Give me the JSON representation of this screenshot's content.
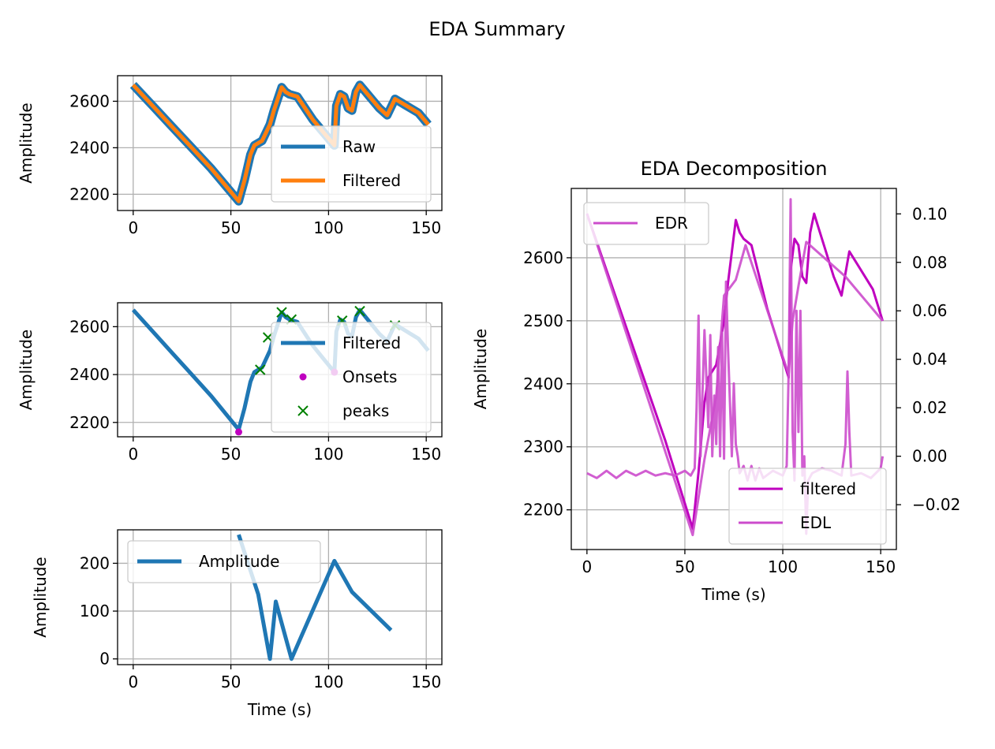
{
  "figure": {
    "suptitle": "EDA Summary"
  },
  "chart_data": [
    {
      "type": "line",
      "title": "",
      "xlabel": "",
      "ylabel": "Amplitude",
      "xlim": [
        -8,
        158
      ],
      "ylim": [
        2130,
        2710
      ],
      "xticks": [
        0,
        50,
        100,
        150
      ],
      "yticks": [
        2200,
        2400,
        2600
      ],
      "grid": true,
      "legend": "right",
      "series": [
        {
          "name": "Raw",
          "color": "#1f77b4",
          "x": [
            0,
            10,
            20,
            30,
            40,
            50,
            54,
            57,
            60,
            62,
            66,
            70,
            72,
            76,
            78,
            80,
            84,
            88,
            92,
            96,
            100,
            103,
            104,
            106,
            108,
            110,
            112,
            114,
            116,
            118,
            122,
            126,
            130,
            134,
            138,
            142,
            146,
            151
          ],
          "y": [
            2670,
            2580,
            2490,
            2400,
            2310,
            2210,
            2170,
            2260,
            2370,
            2410,
            2430,
            2500,
            2560,
            2660,
            2640,
            2630,
            2620,
            2570,
            2520,
            2480,
            2440,
            2410,
            2580,
            2630,
            2620,
            2570,
            2560,
            2640,
            2670,
            2650,
            2610,
            2570,
            2540,
            2610,
            2590,
            2570,
            2550,
            2500
          ]
        },
        {
          "name": "Filtered",
          "color": "#ff7f0e",
          "x": [
            0,
            10,
            20,
            30,
            40,
            50,
            54,
            57,
            60,
            62,
            66,
            70,
            72,
            76,
            78,
            80,
            84,
            88,
            92,
            96,
            100,
            103,
            104,
            106,
            108,
            110,
            112,
            114,
            116,
            118,
            122,
            126,
            130,
            134,
            138,
            142,
            146,
            151
          ],
          "y": [
            2670,
            2580,
            2490,
            2400,
            2310,
            2210,
            2170,
            2260,
            2370,
            2410,
            2430,
            2500,
            2560,
            2660,
            2640,
            2630,
            2620,
            2570,
            2520,
            2480,
            2440,
            2410,
            2580,
            2630,
            2620,
            2570,
            2560,
            2640,
            2670,
            2650,
            2610,
            2570,
            2540,
            2610,
            2590,
            2570,
            2550,
            2500
          ]
        }
      ]
    },
    {
      "type": "line",
      "title": "",
      "xlabel": "",
      "ylabel": "Amplitude",
      "xlim": [
        -8,
        158
      ],
      "ylim": [
        2140,
        2700
      ],
      "xticks": [
        0,
        50,
        100,
        150
      ],
      "yticks": [
        2200,
        2400,
        2600
      ],
      "grid": true,
      "legend": "right",
      "series": [
        {
          "name": "Filtered",
          "color": "#1f77b4",
          "x": [
            0,
            10,
            20,
            30,
            40,
            50,
            54,
            57,
            60,
            62,
            66,
            70,
            72,
            76,
            78,
            80,
            84,
            88,
            92,
            96,
            100,
            103,
            104,
            106,
            108,
            110,
            112,
            114,
            116,
            118,
            122,
            126,
            130,
            134,
            138,
            142,
            146,
            151
          ],
          "y": [
            2670,
            2580,
            2490,
            2400,
            2310,
            2210,
            2170,
            2260,
            2370,
            2410,
            2430,
            2500,
            2560,
            2660,
            2640,
            2630,
            2620,
            2570,
            2520,
            2480,
            2440,
            2410,
            2580,
            2630,
            2620,
            2570,
            2560,
            2640,
            2670,
            2650,
            2610,
            2570,
            2540,
            2610,
            2590,
            2570,
            2550,
            2500
          ]
        },
        {
          "name": "Onsets",
          "color": "#bf00bf",
          "marker": "dot",
          "x": [
            54,
            103
          ],
          "y": [
            2160,
            2410
          ]
        },
        {
          "name": "peaks",
          "color": "#008000",
          "marker": "x",
          "x": [
            65,
            69,
            76,
            81,
            107,
            116,
            134
          ],
          "y": [
            2420,
            2555,
            2660,
            2630,
            2625,
            2665,
            2605
          ]
        }
      ]
    },
    {
      "type": "line",
      "title": "",
      "xlabel": "Time (s)",
      "ylabel": "Amplitude",
      "xlim": [
        -8,
        158
      ],
      "ylim": [
        -12,
        270
      ],
      "xticks": [
        0,
        50,
        100,
        150
      ],
      "yticks": [
        0,
        100,
        200
      ],
      "grid": true,
      "legend": "upper left",
      "series": [
        {
          "name": "Amplitude",
          "color": "#1f77b4",
          "x": [
            54,
            64,
            70,
            73,
            81,
            103,
            112,
            132
          ],
          "y": [
            260,
            135,
            0,
            120,
            0,
            205,
            140,
            60
          ]
        }
      ]
    },
    {
      "type": "line",
      "title": "EDA Decomposition",
      "xlabel": "Time (s)",
      "ylabel": "Amplitude",
      "xlim": [
        -8,
        158
      ],
      "ylim": [
        2137,
        2710
      ],
      "y2lim": [
        -0.0385,
        0.1105
      ],
      "xticks": [
        0,
        50,
        100,
        150
      ],
      "yticks": [
        2200,
        2300,
        2400,
        2500,
        2600
      ],
      "y2ticks": [
        -0.02,
        0.0,
        0.02,
        0.04,
        0.06,
        0.08,
        0.1
      ],
      "grid": true,
      "legend_right_axis": "upper left",
      "legend_left_axis": "lower right",
      "series": [
        {
          "name": "filtered",
          "color": "#bf00bf",
          "axis": "left",
          "x": [
            0,
            10,
            20,
            30,
            40,
            50,
            54,
            57,
            60,
            62,
            66,
            70,
            72,
            76,
            78,
            80,
            84,
            88,
            92,
            96,
            100,
            103,
            104,
            106,
            108,
            110,
            112,
            114,
            116,
            118,
            122,
            126,
            130,
            134,
            138,
            142,
            146,
            151
          ],
          "y": [
            2670,
            2580,
            2490,
            2400,
            2310,
            2210,
            2170,
            2260,
            2370,
            2410,
            2430,
            2500,
            2560,
            2660,
            2640,
            2630,
            2620,
            2570,
            2520,
            2480,
            2440,
            2410,
            2580,
            2630,
            2620,
            2570,
            2560,
            2640,
            2670,
            2650,
            2610,
            2570,
            2540,
            2610,
            2590,
            2570,
            2550,
            2500
          ]
        },
        {
          "name": "EDL",
          "color": "#cc4ccc",
          "axis": "left",
          "x": [
            0,
            54,
            60,
            66,
            70,
            76,
            81,
            103,
            105,
            108,
            112,
            132,
            151
          ],
          "y": [
            2670,
            2160,
            2280,
            2380,
            2540,
            2565,
            2620,
            2415,
            2500,
            2555,
            2625,
            2570,
            2500
          ]
        },
        {
          "name": "EDR",
          "color": "#cc4ccc",
          "axis": "right",
          "x": [
            0,
            5,
            10,
            15,
            20,
            25,
            30,
            35,
            40,
            45,
            50,
            53,
            55,
            56,
            57,
            58,
            60,
            62,
            63,
            64,
            65,
            66,
            67,
            68,
            69,
            70,
            71,
            72,
            74,
            75,
            76,
            77,
            78,
            80,
            82,
            84,
            86,
            88,
            90,
            95,
            100,
            102,
            103,
            104,
            105,
            106,
            107,
            108,
            109,
            110,
            111,
            112,
            113,
            115,
            120,
            125,
            130,
            132,
            133,
            134,
            135,
            140,
            145,
            150,
            151
          ],
          "y": [
            -0.007,
            -0.009,
            -0.006,
            -0.009,
            -0.006,
            -0.008,
            -0.006,
            -0.008,
            -0.007,
            -0.008,
            -0.006,
            -0.008,
            -0.005,
            0.02,
            0.058,
            0.0,
            0.052,
            0.012,
            0.05,
            0.0,
            0.025,
            0.005,
            0.045,
            0.0,
            0.051,
            -0.001,
            0.072,
            0.045,
            0.0,
            0.03,
            0.005,
            0.0,
            -0.007,
            -0.004,
            -0.01,
            -0.004,
            -0.01,
            -0.005,
            -0.009,
            -0.006,
            -0.008,
            -0.004,
            0.035,
            0.106,
            0.01,
            -0.01,
            0.06,
            0.01,
            0.06,
            -0.008,
            0.0,
            -0.032,
            -0.01,
            -0.007,
            -0.005,
            -0.006,
            -0.008,
            0.005,
            0.035,
            0.01,
            -0.008,
            -0.007,
            -0.009,
            -0.005,
            0.0
          ]
        }
      ]
    }
  ]
}
